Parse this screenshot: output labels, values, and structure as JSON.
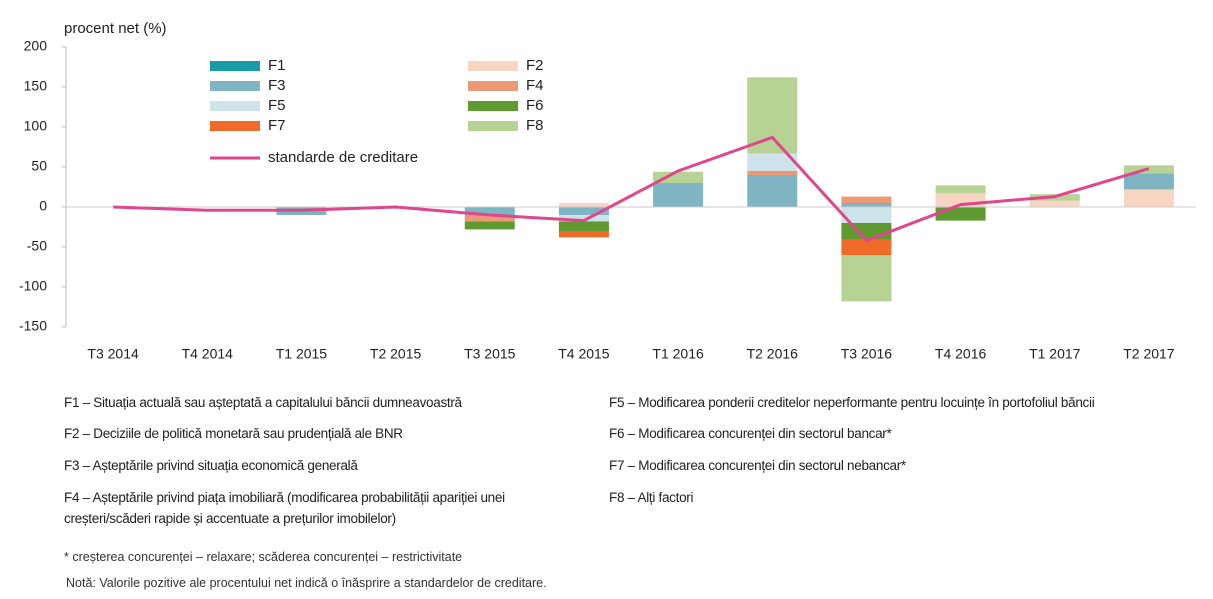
{
  "chart_data": {
    "type": "bar",
    "y_label": "procent net (%)",
    "categories": [
      "T3 2014",
      "T4 2014",
      "T1 2015",
      "T2 2015",
      "T3 2015",
      "T4 2015",
      "T1 2016",
      "T2 2016",
      "T3 2016",
      "T4 2016",
      "T1 2017",
      "T2 2017"
    ],
    "series": [
      {
        "name": "F1",
        "color": "#1a9ba8",
        "values": [
          0,
          0,
          0,
          0,
          0,
          0,
          0,
          0,
          0,
          0,
          0,
          0
        ]
      },
      {
        "name": "F2",
        "color": "#f8d5c2",
        "values": [
          0,
          0,
          0,
          0,
          0,
          5,
          0,
          0,
          0,
          17,
          8,
          22
        ]
      },
      {
        "name": "F3",
        "color": "#7fb5c3",
        "values": [
          0,
          0,
          -10,
          0,
          -10,
          -10,
          30,
          40,
          5,
          0,
          0,
          20
        ]
      },
      {
        "name": "F4",
        "color": "#eb9a75",
        "values": [
          0,
          0,
          0,
          0,
          -8,
          0,
          0,
          5,
          8,
          0,
          0,
          0
        ]
      },
      {
        "name": "F5",
        "color": "#cde3e9",
        "values": [
          0,
          0,
          0,
          0,
          0,
          -8,
          0,
          22,
          -20,
          0,
          0,
          0
        ]
      },
      {
        "name": "F6",
        "color": "#5e9a30",
        "values": [
          0,
          0,
          0,
          0,
          -10,
          -12,
          0,
          0,
          -20,
          -17,
          0,
          0
        ]
      },
      {
        "name": "F7",
        "color": "#f06a2a",
        "values": [
          0,
          0,
          0,
          0,
          0,
          -8,
          0,
          0,
          -20,
          0,
          0,
          0
        ]
      },
      {
        "name": "F8",
        "color": "#b6d394",
        "values": [
          0,
          0,
          0,
          0,
          0,
          0,
          14,
          95,
          -58,
          10,
          8,
          10
        ]
      }
    ],
    "line": {
      "name": "standarde de creditare",
      "color": "#e0468c",
      "values": [
        0,
        -4,
        -4,
        0,
        -10,
        -17,
        45,
        87,
        -42,
        3,
        13,
        48
      ]
    },
    "ylim": [
      -150,
      200
    ],
    "yticks": [
      -150,
      -100,
      -50,
      0,
      50,
      100,
      150,
      200
    ],
    "footnotes_left": [
      "F1 – Situația actuală sau așteptată a capitalului băncii dumneavoastră",
      "F2 – Deciziile de politică monetară sau prudențială ale BNR",
      "F3 – Așteptările privind situația economică generală",
      "F4 – Așteptările privind piața imobiliară (modificarea probabilității apariției unei creșteri/scăderi rapide și accentuate a prețurilor imobilelor)"
    ],
    "footnotes_right": [
      "F5 – Modificarea ponderii creditelor neperformante pentru locuințe în portofoliul băncii",
      "F6 – Modificarea concurenței din sectorul bancar*",
      "F7 – Modificarea concurenței din sectorul nebancar*",
      "F8 – Alți factori"
    ],
    "notes": [
      "* creșterea concurenței – relaxare; scăderea concurenței – restrictivitate",
      "Notă: Valorile pozitive ale procentului net indică o înăsprire a standardelor de creditare."
    ]
  }
}
